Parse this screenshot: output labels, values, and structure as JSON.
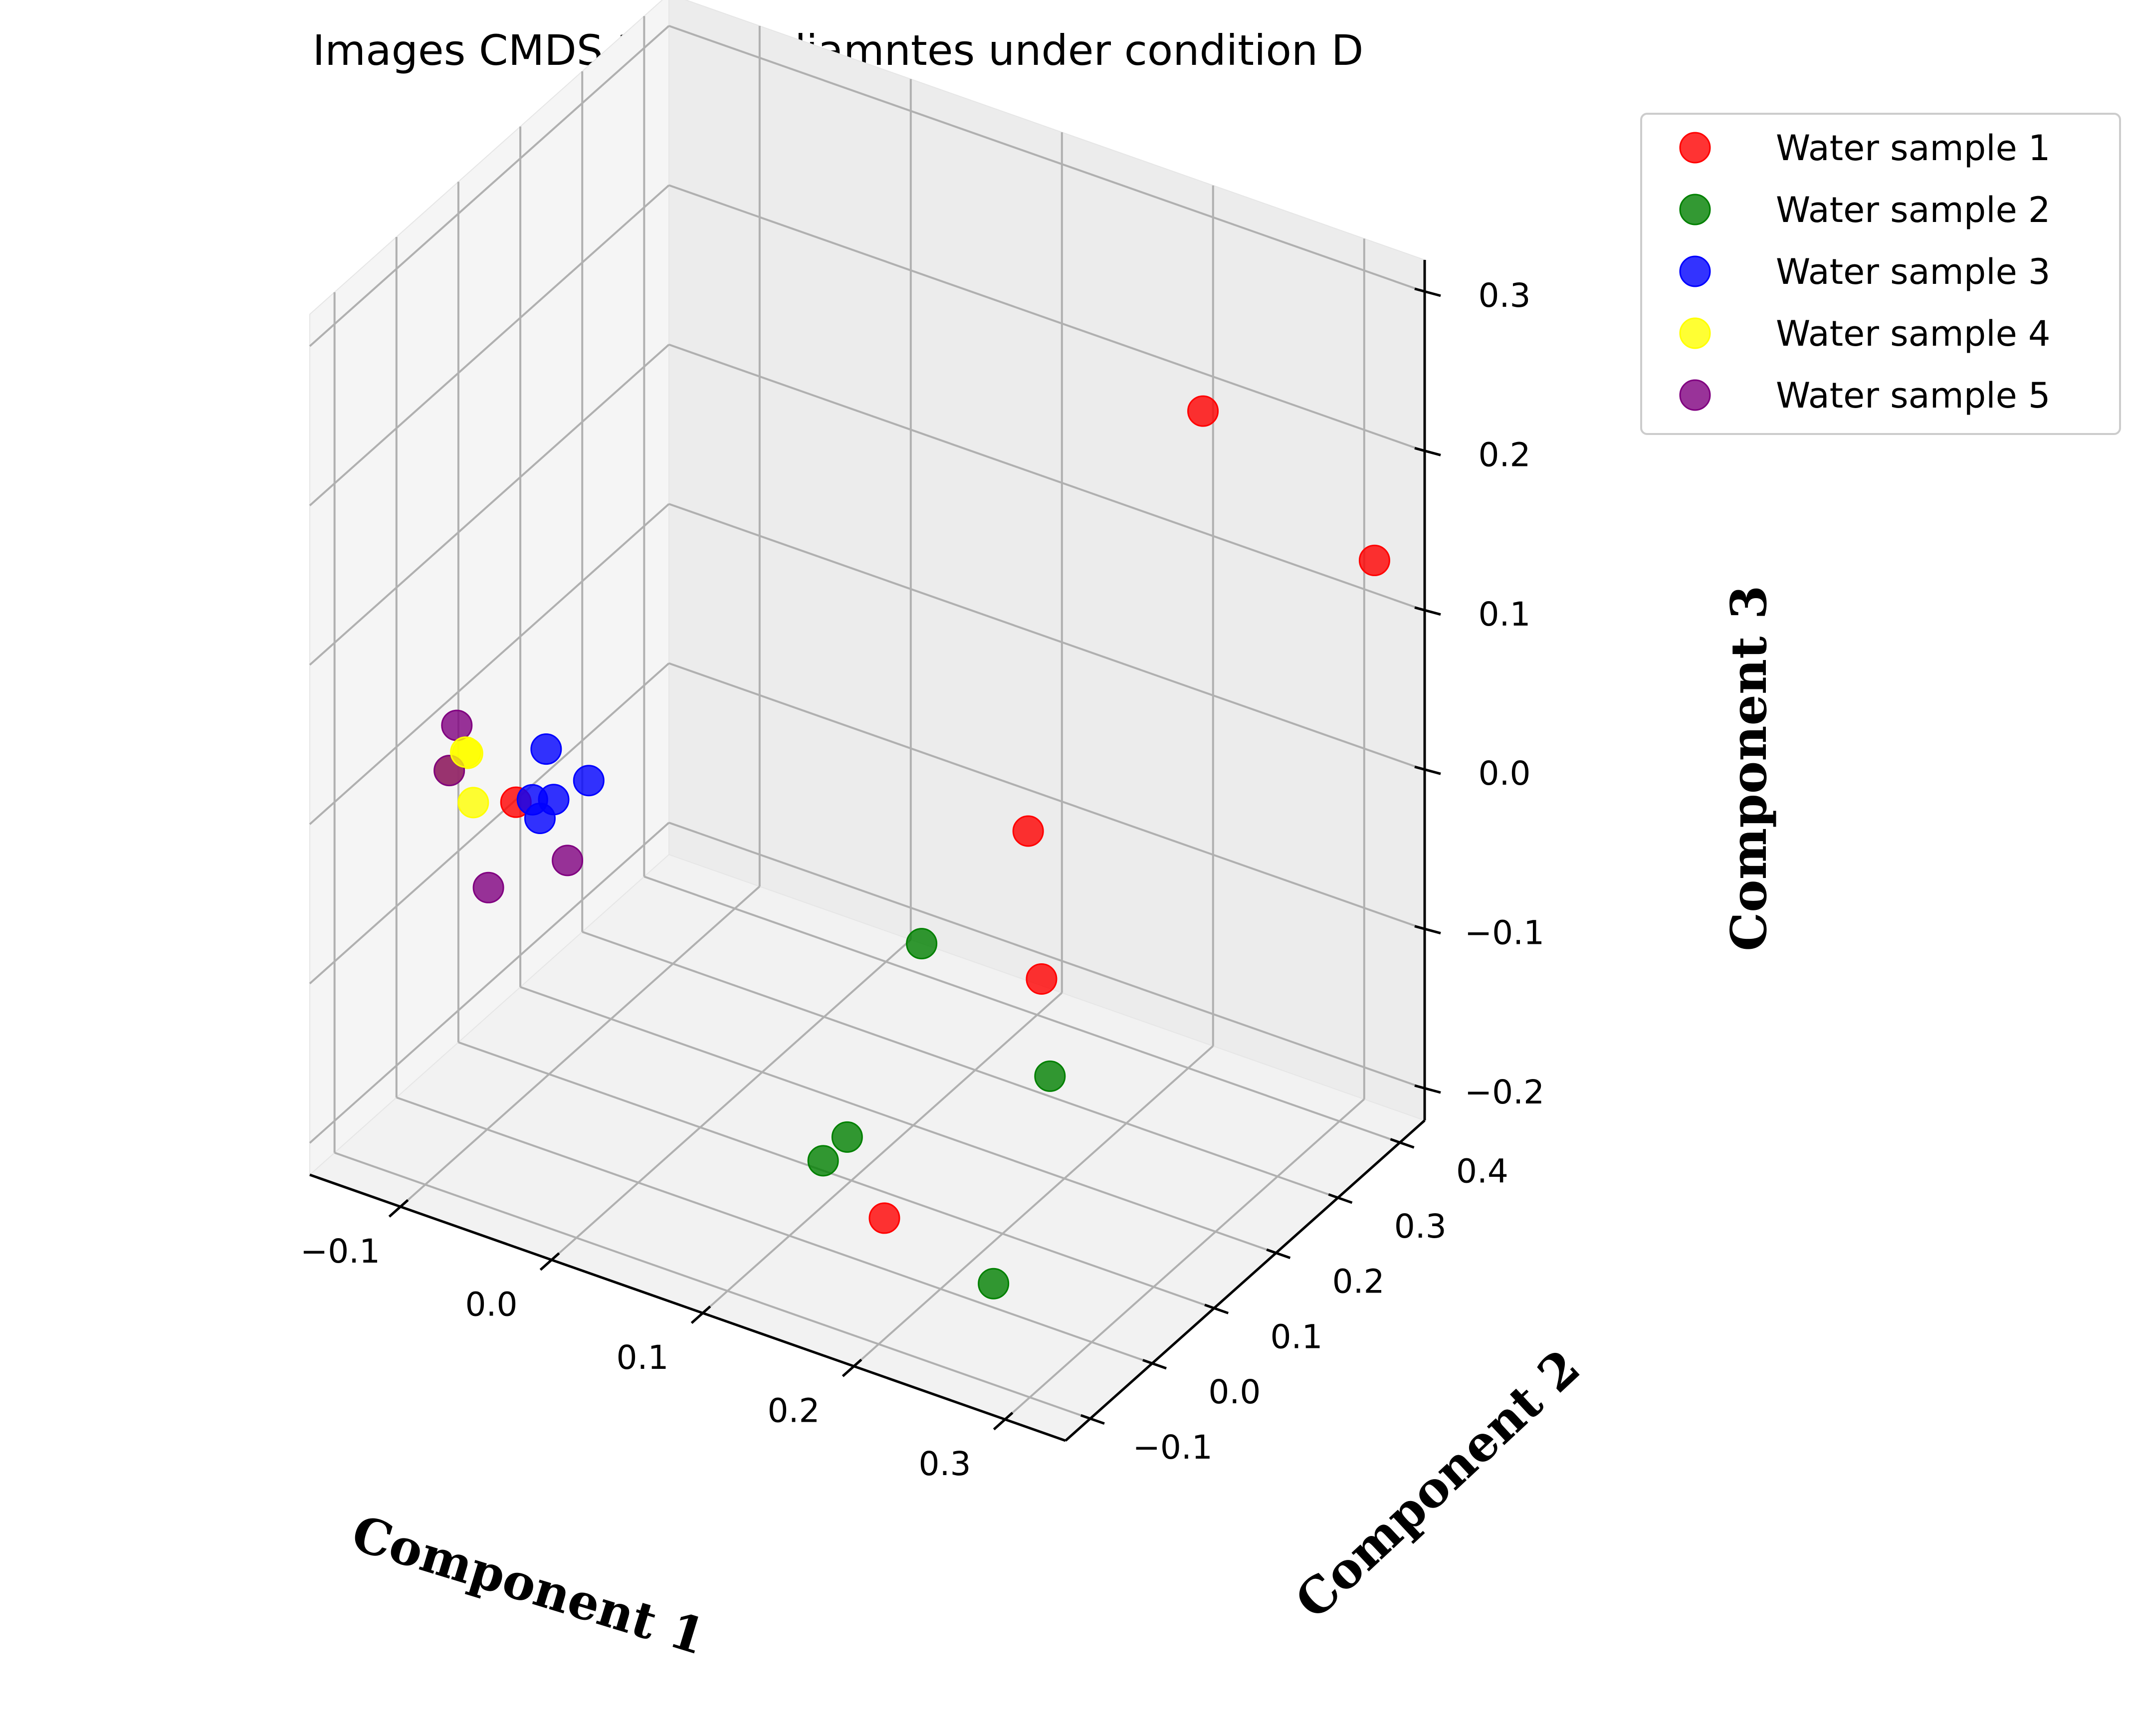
{
  "chart_data": {
    "type": "scatter",
    "projection": "3d",
    "title": "Images CMDS 3D coordiamntes under condition D",
    "xlabel": "Component 1",
    "ylabel": "Component 2",
    "zlabel": "Component 3",
    "xlim": [
      -0.16,
      0.34
    ],
    "ylim": [
      -0.14,
      0.44
    ],
    "zlim": [
      -0.22,
      0.32
    ],
    "x_ticks": [
      -0.1,
      0.0,
      0.1,
      0.2,
      0.3
    ],
    "y_ticks": [
      -0.1,
      0.0,
      0.1,
      0.2,
      0.3,
      0.4
    ],
    "z_ticks": [
      -0.2,
      -0.1,
      0.0,
      0.1,
      0.2,
      0.3
    ],
    "x_tick_labels": [
      "−0.1",
      "0.0",
      "0.1",
      "0.2",
      "0.3"
    ],
    "y_tick_labels": [
      "−0.1",
      "0.0",
      "0.1",
      "0.2",
      "0.3",
      "0.4"
    ],
    "z_tick_labels": [
      "−0.2",
      "−0.1",
      "0.0",
      "0.1",
      "0.2",
      "0.3"
    ],
    "grid": true,
    "legend_position": "outside top-right",
    "series": [
      {
        "name": "Water sample 1",
        "color": "#ff0000",
        "points": [
          {
            "x": 0.222,
            "y": 0.37,
            "z": 0.21
          },
          {
            "x": 0.176,
            "y": 0.2,
            "z": -0.01
          },
          {
            "x": 0.2,
            "y": 0.163,
            "z": -0.082
          },
          {
            "x": 0.315,
            "y": 0.42,
            "z": 0.13
          },
          {
            "x": 0.212,
            "y": -0.12,
            "z": -0.13
          },
          {
            "x": -0.04,
            "y": -0.1,
            "z": 0.04
          }
        ]
      },
      {
        "name": "Water sample 2",
        "color": "#008000",
        "points": [
          {
            "x": 0.126,
            "y": 0.15,
            "z": -0.08
          },
          {
            "x": 0.215,
            "y": 0.14,
            "z": -0.13
          },
          {
            "x": 0.13,
            "y": 0.02,
            "z": -0.155
          },
          {
            "x": 0.11,
            "y": 0.03,
            "z": -0.18
          },
          {
            "x": 0.235,
            "y": 0.0,
            "z": -0.205
          }
        ]
      },
      {
        "name": "Water sample 3",
        "color": "#0000ff",
        "points": [
          {
            "x": -0.02,
            "y": -0.1,
            "z": 0.08
          },
          {
            "x": 0.0,
            "y": -0.08,
            "z": 0.06
          },
          {
            "x": -0.025,
            "y": -0.11,
            "z": 0.05
          },
          {
            "x": -0.015,
            "y": -0.1,
            "z": 0.05
          },
          {
            "x": -0.02,
            "y": -0.11,
            "z": 0.04
          }
        ]
      },
      {
        "name": "Water sample 4",
        "color": "#ffff00",
        "points": [
          {
            "x": -0.065,
            "y": -0.12,
            "z": 0.07
          },
          {
            "x": -0.08,
            "y": -0.11,
            "z": 0.05
          },
          {
            "x": -0.06,
            "y": -0.12,
            "z": 0.04
          },
          {
            "x": -0.072,
            "y": -0.1,
            "z": 0.06
          }
        ]
      },
      {
        "name": "Water sample 5",
        "color": "#800080",
        "points": [
          {
            "x": -0.075,
            "y": -0.11,
            "z": 0.08
          },
          {
            "x": -0.08,
            "y": -0.11,
            "z": 0.05
          },
          {
            "x": -0.05,
            "y": -0.12,
            "z": -0.01
          },
          {
            "x": -0.01,
            "y": -0.09,
            "z": 0.01
          }
        ]
      }
    ]
  }
}
